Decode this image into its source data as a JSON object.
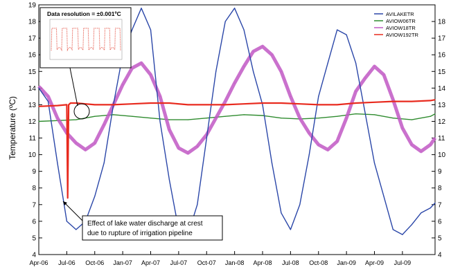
{
  "chart_data": {
    "type": "line",
    "ylabel": "Temperature (ºC)",
    "ylim": [
      4,
      19
    ],
    "y_ticks": [
      "4",
      "5",
      "6",
      "7",
      "8",
      "9",
      "10",
      "11",
      "12",
      "13",
      "14",
      "15",
      "16",
      "17",
      "18",
      "19"
    ],
    "right_y_ticks": [
      "4",
      "5",
      "6",
      "7",
      "8",
      "9",
      "10",
      "11",
      "12",
      "13",
      "14",
      "15",
      "16",
      "17",
      "18"
    ],
    "x_range": [
      0,
      42.5
    ],
    "x_tick_labels": [
      "Apr-06",
      "Jul-06",
      "Oct-06",
      "Jan-07",
      "Apr-07",
      "Jul-07",
      "Oct-07",
      "Jan-08",
      "Apr-08",
      "Jul-08",
      "Oct-08",
      "Jan-09",
      "Apr-09",
      "Jul-09"
    ],
    "x_tick_months": [
      0,
      3,
      6,
      9,
      12,
      15,
      18,
      21,
      24,
      27,
      30,
      33,
      36,
      39
    ],
    "grid": false,
    "legend_position": "top-right",
    "series": [
      {
        "name": "AVILAKETR",
        "color": "#2a46a8",
        "x": [
          0,
          1,
          2,
          3,
          4,
          5,
          6,
          7,
          8,
          9,
          10,
          11,
          12,
          13,
          14,
          15,
          16,
          17,
          18,
          19,
          20,
          21,
          22,
          23,
          24,
          25,
          26,
          27,
          28,
          29,
          30,
          31,
          32,
          33,
          34,
          35,
          36,
          37,
          38,
          39,
          40,
          41,
          42,
          42.5
        ],
        "values": [
          14,
          13.2,
          9.5,
          6,
          5.5,
          6,
          7.5,
          9.5,
          13,
          16,
          17.5,
          18.8,
          17.5,
          12,
          8.5,
          5.5,
          5.2,
          7,
          11,
          15,
          18,
          18.8,
          17.5,
          15,
          13,
          9.5,
          6.5,
          5.5,
          7,
          10,
          13.5,
          15.5,
          17.5,
          17.2,
          15.5,
          12.5,
          9.5,
          7.5,
          5.5,
          5.2,
          5.8,
          6.5,
          6.8,
          7.1
        ]
      },
      {
        "name": "AVIOW06TR",
        "color": "#2e8b2e",
        "x": [
          0,
          2,
          4,
          6,
          8,
          10,
          12,
          14,
          16,
          18,
          20,
          22,
          24,
          26,
          28,
          30,
          32,
          34,
          36,
          38,
          40,
          42,
          42.5
        ],
        "values": [
          12,
          12.05,
          12.1,
          12.3,
          12.4,
          12.3,
          12.2,
          12.1,
          12.1,
          12.2,
          12.3,
          12.4,
          12.35,
          12.2,
          12.15,
          12.2,
          12.3,
          12.45,
          12.4,
          12.2,
          12.1,
          12.3,
          12.45
        ]
      },
      {
        "name": "AVIOW18TR",
        "color": "#c158c4",
        "x": [
          0,
          1,
          2,
          3,
          4,
          5,
          6,
          7,
          8,
          9,
          10,
          11,
          12,
          13,
          14,
          15,
          16,
          17,
          18,
          19,
          20,
          21,
          22,
          23,
          24,
          25,
          26,
          27,
          28,
          29,
          30,
          31,
          32,
          33,
          34,
          35,
          36,
          37,
          38,
          39,
          40,
          41,
          42,
          42.5
        ],
        "values": [
          14.1,
          13.5,
          12.2,
          11.3,
          10.7,
          10.3,
          10.7,
          11.8,
          13,
          14.2,
          15.2,
          15.5,
          14.8,
          13.5,
          11.5,
          10.4,
          10.1,
          10.5,
          11.2,
          12.2,
          13.2,
          14.3,
          15.3,
          16.2,
          16.5,
          16,
          15,
          13.5,
          12.2,
          11.3,
          10.6,
          10.3,
          10.8,
          12.2,
          13.8,
          14.6,
          15.3,
          14.8,
          13.3,
          11.6,
          10.6,
          10.2,
          10.6,
          11
        ]
      },
      {
        "name": "AVIOW192TR",
        "color": "#e82a1e",
        "x": [
          0,
          2,
          3,
          3.1,
          3.2,
          3.4,
          4,
          6,
          8,
          10,
          12,
          14,
          16,
          18,
          20,
          22,
          24,
          26,
          28,
          30,
          32,
          34,
          36,
          38,
          40,
          42,
          42.5
        ],
        "values": [
          12.9,
          12.95,
          13.0,
          7.4,
          13.0,
          13.1,
          13.1,
          13.0,
          13.0,
          13.05,
          13.1,
          13.1,
          13.0,
          13.0,
          13.0,
          13.05,
          13.1,
          13.1,
          13.05,
          13.0,
          13.0,
          13.1,
          13.15,
          13.2,
          13.2,
          13.25,
          13.3
        ]
      }
    ],
    "annotations": {
      "inset_title": "Data resolution = ±0.001ºC",
      "discharge_note_line1": "Effect of lake water discharge at crest",
      "discharge_note_line2": "due to rupture of irrigation pipeline"
    }
  }
}
